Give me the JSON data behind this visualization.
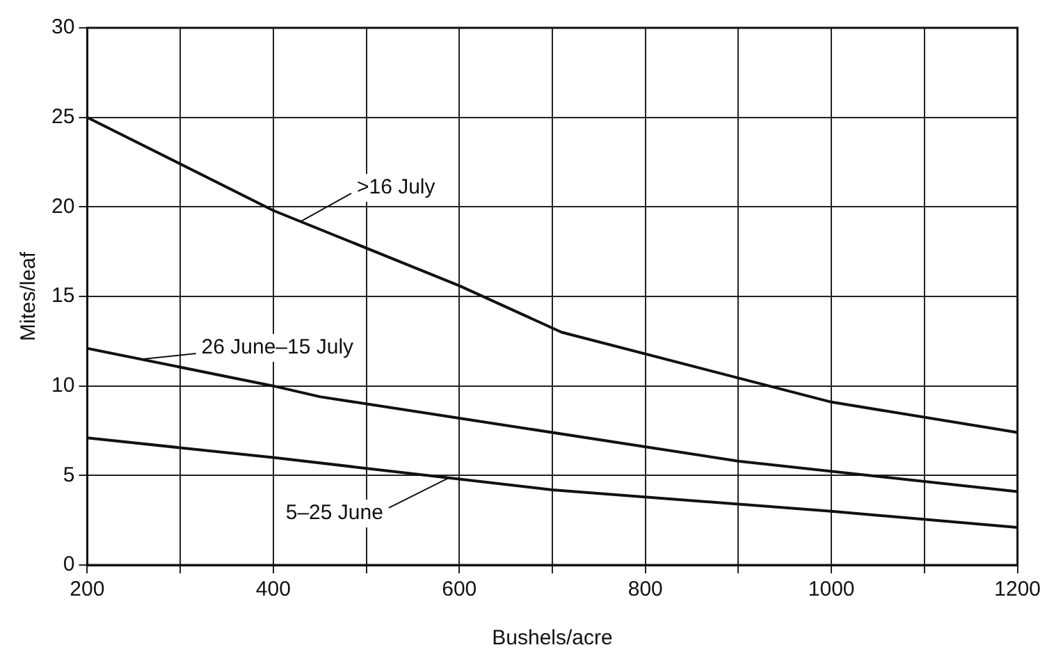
{
  "chart_data": {
    "type": "line",
    "xlabel": "Bushels/acre",
    "ylabel": "Mites/leaf",
    "series": [
      {
        "color": "#111111",
        "x": [
          200,
          400,
          600,
          710,
          1000,
          1200
        ],
        "values": [
          25,
          19.8,
          15.6,
          13,
          9.1,
          7.4
        ]
      },
      {
        "color": "#111111",
        "x": [
          200,
          400,
          450,
          600,
          900,
          1200
        ],
        "values": [
          12.1,
          10,
          9.4,
          8.2,
          5.8,
          4.1
        ]
      },
      {
        "color": "#111111",
        "x": [
          200,
          400,
          600,
          700,
          1000,
          1200
        ],
        "values": [
          7.1,
          6,
          4.8,
          4.2,
          3,
          2.1
        ]
      }
    ],
    "xlim": [
      200,
      1200
    ],
    "xticks": [
      200,
      {
        "value": 300,
        "label": null
      },
      400,
      {
        "value": 500,
        "label": null
      },
      600,
      {
        "value": 700,
        "label": null
      },
      800,
      {
        "value": 900,
        "label": null
      },
      1000,
      {
        "value": 1100,
        "label": null
      },
      1200
    ],
    "ylim": [
      0,
      30
    ],
    "yticks": [
      0,
      5,
      10,
      15,
      20,
      25,
      30
    ],
    "grid": true,
    "marker": "none",
    "line_style": "solid",
    "legend": false,
    "annotations": [
      {
        "text": ">16 July",
        "x": 430,
        "y": 19.2
      },
      {
        "text": "26 June–15 July",
        "x": 260,
        "y": 11.5
      },
      {
        "text": "5–25 June",
        "x": 590,
        "y": 4.9
      }
    ]
  }
}
